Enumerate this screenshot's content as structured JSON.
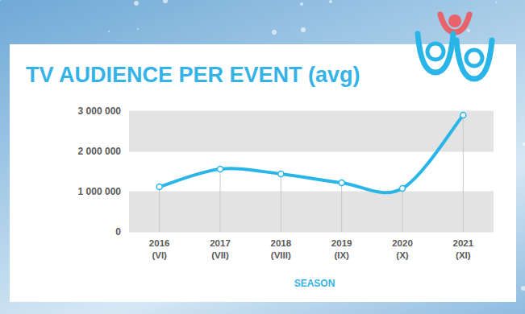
{
  "chart_data": {
    "type": "line",
    "title": "TV AUDIENCE PER EVENT (avg)",
    "x_label": "SEASON",
    "categories": [
      "2016 (VI)",
      "2017 (VII)",
      "2018 (VIII)",
      "2019 (IX)",
      "2020 (X)",
      "2021 (XI)"
    ],
    "values": [
      1120000,
      1560000,
      1440000,
      1220000,
      1080000,
      2900000
    ],
    "color": "#29b5e8",
    "marker": "circle",
    "ylim": [
      0,
      3000000
    ],
    "yticks": [
      0,
      {
        "value": 1000000,
        "label": "1 000 000"
      },
      {
        "value": 2000000,
        "label": "2 000 000"
      },
      {
        "value": 3000000,
        "label": "3 000 000"
      }
    ],
    "grid": true
  }
}
